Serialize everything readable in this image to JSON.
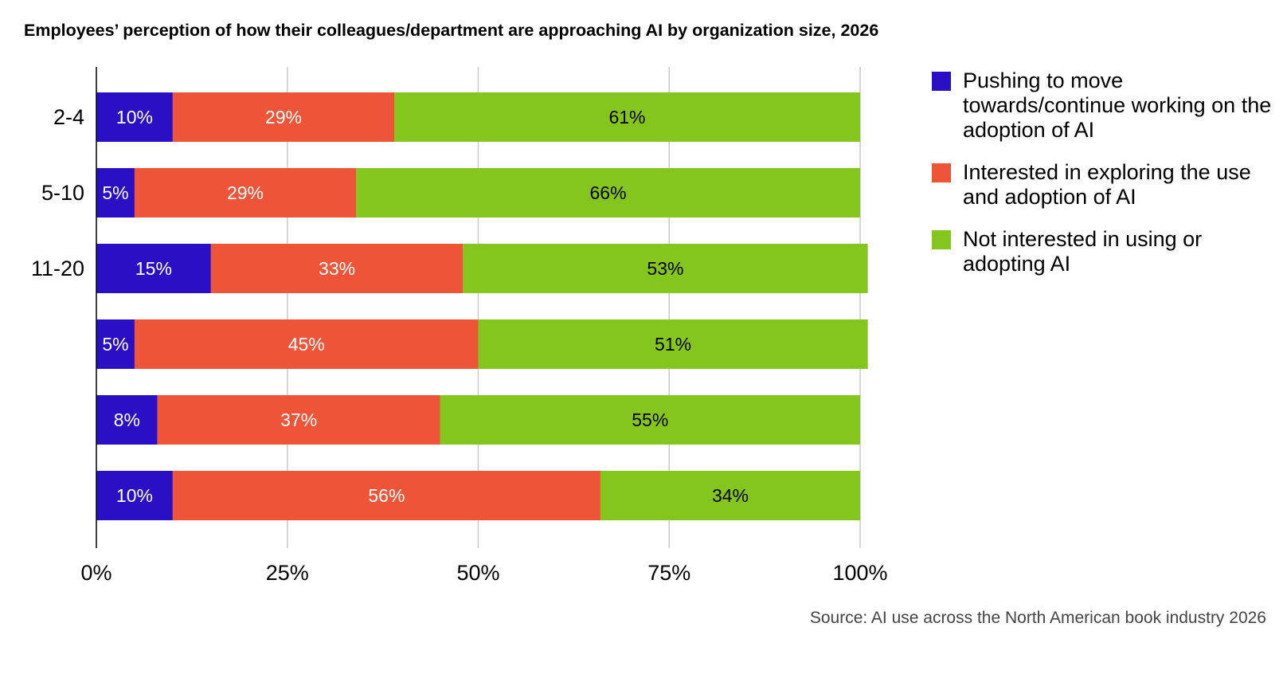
{
  "chart_data": {
    "type": "bar",
    "orientation": "horizontal",
    "stacked": true,
    "title": "Employees’ perception of how their colleagues/department are approaching AI by organization size, 2026",
    "categories": [
      "2-4",
      "5-10",
      "11-20",
      "",
      "",
      ""
    ],
    "series": [
      {
        "name": "Pushing to move towards/continue working on the adoption of AI",
        "color": "#2a0fc4",
        "label_color": "#ffffff",
        "values": [
          10,
          5,
          15,
          5,
          8,
          10
        ]
      },
      {
        "name": "Interested in exploring the use and adoption of AI",
        "color": "#ee5437",
        "label_color": "#ffffff",
        "values": [
          29,
          29,
          33,
          45,
          37,
          56
        ]
      },
      {
        "name": "Not interested in using or adopting AI",
        "color": "#84c51e",
        "label_color": "#000000",
        "values": [
          61,
          66,
          53,
          51,
          55,
          34
        ]
      }
    ],
    "x_ticks": [
      "0%",
      "25%",
      "50%",
      "75%",
      "100%"
    ],
    "xlim": [
      0,
      100
    ],
    "grid": true,
    "legend": "right",
    "source": "Source: AI use across the North American book industry 2026"
  }
}
